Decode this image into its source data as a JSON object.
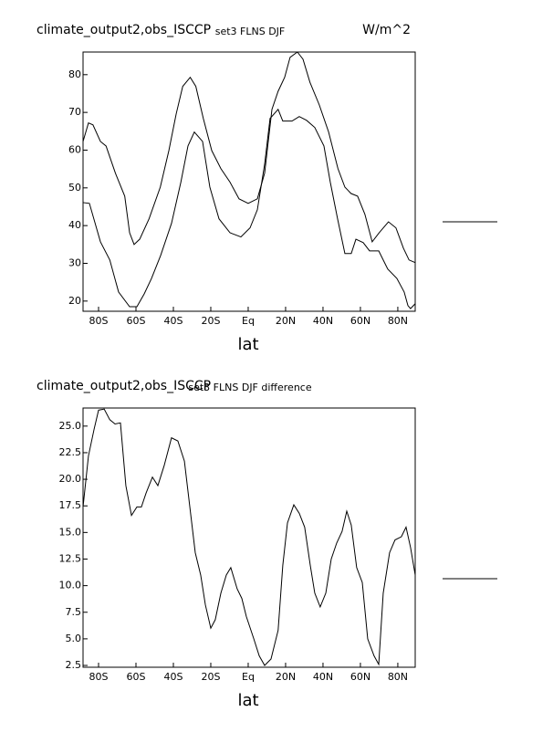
{
  "chart_data": [
    {
      "type": "line",
      "title": "climate_output2,obs_ISCCP",
      "subtitle": "set3 FLNS DJF",
      "units": "W/m^2",
      "xlabel": "lat",
      "xlim": [
        -88.3,
        89.3
      ],
      "ylim": [
        17.3,
        86
      ],
      "xticks": [
        {
          "value": -80,
          "label": "80S"
        },
        {
          "value": -60,
          "label": "60S"
        },
        {
          "value": -40,
          "label": "40S"
        },
        {
          "value": -20,
          "label": "20S"
        },
        {
          "value": 0,
          "label": "Eq"
        },
        {
          "value": 20,
          "label": "20N"
        },
        {
          "value": 40,
          "label": "40N"
        },
        {
          "value": 60,
          "label": "60N"
        },
        {
          "value": 80,
          "label": "80N"
        }
      ],
      "yticks": [
        20,
        30,
        40,
        50,
        60,
        70,
        80
      ],
      "series": [
        {
          "color": "#000000",
          "x": [
            -88.3,
            -85.4,
            -83,
            -79,
            -76,
            -71,
            -66,
            -63.4,
            -61,
            -58,
            -53,
            -47,
            -42.4,
            -38.5,
            -35,
            -31,
            -28,
            -24,
            -19.5,
            -14.6,
            -9.7,
            -4.9,
            0,
            4.9,
            8.8,
            12.7,
            16,
            19.5,
            22.4,
            26.3,
            29.3,
            33,
            38,
            43,
            48,
            51.7,
            55,
            58.5,
            62.4,
            66.3,
            70,
            75,
            79,
            83,
            86,
            89.3
          ],
          "values": [
            62.3,
            67.2,
            66.7,
            62.3,
            61.1,
            53.9,
            47.8,
            38.1,
            35,
            36.4,
            41.8,
            50.2,
            59.9,
            69.6,
            76.9,
            79.3,
            76.9,
            68.4,
            59.9,
            55.1,
            51.5,
            47.1,
            45.9,
            47.1,
            53.9,
            70.8,
            75.6,
            79.3,
            84.6,
            86,
            84.1,
            78,
            72,
            64.8,
            55.1,
            50.2,
            48.5,
            47.8,
            43,
            35.7,
            38.1,
            41,
            39.4,
            34,
            30.9,
            30.2
          ]
        },
        {
          "color": "#000000",
          "x": [
            -88.3,
            -84.9,
            -79,
            -74,
            -69.3,
            -63.4,
            -59.5,
            -55.6,
            -51.7,
            -46.8,
            -41,
            -36,
            -32.2,
            -28.8,
            -24.4,
            -20.5,
            -15.6,
            -9.7,
            -3.9,
            1,
            4.9,
            8.8,
            11.7,
            16,
            18.5,
            23.4,
            27.3,
            31.2,
            35.6,
            40.5,
            43.9,
            47.8,
            51.7,
            55.1,
            57.6,
            61.5,
            64.9,
            69.8,
            74.6,
            79.5,
            83.4,
            85.4,
            86.8,
            89.3
          ],
          "values": [
            46.1,
            45.9,
            35.7,
            30.9,
            22.4,
            18.5,
            18.5,
            21.9,
            26,
            32.1,
            40.6,
            51.5,
            61.1,
            64.8,
            62.3,
            50.2,
            41.8,
            38.1,
            37,
            39.4,
            44.2,
            56.3,
            68.4,
            70.8,
            67.7,
            67.7,
            68.9,
            67.9,
            66,
            61.1,
            51.5,
            41.8,
            32.6,
            32.6,
            36.4,
            35.5,
            33.3,
            33.3,
            28.5,
            26,
            22.4,
            18.8,
            18,
            19.3
          ]
        }
      ]
    },
    {
      "type": "line",
      "title": "climate_output2,obs_ISCCP",
      "subtitle": "set3 FLNS DJF difference",
      "xlabel": "lat",
      "xlim": [
        -88.3,
        89.3
      ],
      "ylim": [
        2.33,
        26.7
      ],
      "xticks": [
        {
          "value": -80,
          "label": "80S"
        },
        {
          "value": -60,
          "label": "60S"
        },
        {
          "value": -40,
          "label": "40S"
        },
        {
          "value": -20,
          "label": "20S"
        },
        {
          "value": 0,
          "label": "Eq"
        },
        {
          "value": 20,
          "label": "20N"
        },
        {
          "value": 40,
          "label": "40N"
        },
        {
          "value": 60,
          "label": "60N"
        },
        {
          "value": 80,
          "label": "80N"
        }
      ],
      "yticks": [
        {
          "value": 2.5,
          "label": "2.5"
        },
        {
          "value": 5,
          "label": "5.0"
        },
        {
          "value": 7.5,
          "label": "7.5"
        },
        {
          "value": 10,
          "label": "10.0"
        },
        {
          "value": 12.5,
          "label": "12.5"
        },
        {
          "value": 15,
          "label": "15.0"
        },
        {
          "value": 17.5,
          "label": "17.5"
        },
        {
          "value": 20,
          "label": "20.0"
        },
        {
          "value": 22.5,
          "label": "22.5"
        },
        {
          "value": 25,
          "label": "25.0"
        }
      ],
      "series": [
        {
          "color": "#000000",
          "x": [
            -88.3,
            -85.4,
            -82.4,
            -80,
            -77,
            -74,
            -71.2,
            -68.3,
            -65.4,
            -62.4,
            -59.5,
            -57.1,
            -54.6,
            -51.2,
            -48.3,
            -44.9,
            -41,
            -37.6,
            -34.1,
            -31.2,
            -28.3,
            -25.4,
            -22.9,
            -20,
            -17.6,
            -14.6,
            -11.7,
            -9.3,
            -5.9,
            -3.4,
            -1,
            3,
            5.9,
            8.8,
            12.2,
            16,
            18.5,
            21,
            24.4,
            27.3,
            30.2,
            33.2,
            35.6,
            38.5,
            41.5,
            44.4,
            47.3,
            50.2,
            52.7,
            55.1,
            58,
            61,
            63.9,
            67.3,
            69.8,
            72.2,
            75.6,
            78.5,
            81.9,
            84.4,
            86.8,
            89.3
          ],
          "values": [
            17.4,
            22.2,
            24.7,
            26.5,
            26.6,
            25.6,
            25.2,
            25.3,
            19.4,
            16.6,
            17.4,
            17.4,
            18.7,
            20.2,
            19.4,
            21.3,
            23.9,
            23.6,
            21.7,
            17.4,
            13.1,
            11,
            8.2,
            6,
            6.8,
            9.3,
            11,
            11.7,
            9.7,
            8.8,
            7.1,
            5,
            3.4,
            2.5,
            3.1,
            5.8,
            11.9,
            15.9,
            17.6,
            16.8,
            15.5,
            11.9,
            9.3,
            8,
            9.3,
            12.5,
            14,
            15.1,
            17,
            15.7,
            11.7,
            10.3,
            5,
            3.4,
            2.6,
            9.3,
            13.1,
            14.3,
            14.6,
            15.5,
            13.6,
            11
          ]
        }
      ]
    }
  ]
}
